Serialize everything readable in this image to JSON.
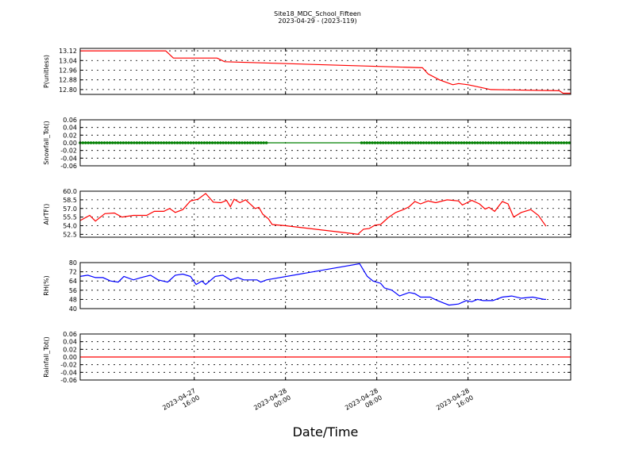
{
  "chart_data": {
    "type": "line",
    "title": "Site18_MDC_School_Fifteen",
    "subtitle": "2023-04-29 - (2023-119)",
    "xlabel": "Date/Time",
    "xlim": [
      "2023-04-27 06:00",
      "2023-04-29 01:00"
    ],
    "x_ticks": [
      {
        "value": "2023-04-27 16:00",
        "label_date": "2023-04-27",
        "label_time": "16:00"
      },
      {
        "value": "2023-04-28 00:00",
        "label_date": "2023-04-28",
        "label_time": "00:00"
      },
      {
        "value": "2023-04-28 08:00",
        "label_date": "2023-04-28",
        "label_time": "08:00"
      },
      {
        "value": "2023-04-28 16:00",
        "label_date": "2023-04-28",
        "label_time": "16:00"
      }
    ],
    "grid": true,
    "panels": [
      {
        "ylabel": "P(unitless)",
        "ylim": [
          12.76,
          13.14
        ],
        "yticks": [
          "13.12",
          "13.04",
          "12.96",
          "12.88",
          "12.80"
        ],
        "series": [
          {
            "color": "#ff0000",
            "markers": false,
            "points": [
              [
                "2023-04-27 06:00",
                13.12
              ],
              [
                "2023-04-27 13:30",
                13.12
              ],
              [
                "2023-04-27 14:10",
                13.06
              ],
              [
                "2023-04-27 18:00",
                13.06
              ],
              [
                "2023-04-27 18:40",
                13.03
              ],
              [
                "2023-04-28 12:00",
                12.98
              ],
              [
                "2023-04-28 12:30",
                12.93
              ],
              [
                "2023-04-28 13:30",
                12.88
              ],
              [
                "2023-04-28 14:40",
                12.84
              ],
              [
                "2023-04-28 15:10",
                12.85
              ],
              [
                "2023-04-28 16:00",
                12.84
              ],
              [
                "2023-04-28 18:00",
                12.8
              ],
              [
                "2023-04-29 00:00",
                12.79
              ],
              [
                "2023-04-29 00:20",
                12.77
              ],
              [
                "2023-04-29 01:00",
                12.77
              ]
            ]
          }
        ]
      },
      {
        "ylabel": "Snowfall_Tot()",
        "ylim": [
          -0.06,
          0.06
        ],
        "yticks": [
          "0.06",
          "0.04",
          "0.02",
          "0.00",
          "-0.02",
          "-0.04",
          "-0.06"
        ],
        "series": [
          {
            "color": "#007f00",
            "markers": true,
            "marker_ranges": [
              [
                "2023-04-27 06:00",
                "2023-04-27 22:30"
              ],
              [
                "2023-04-28 06:40",
                "2023-04-29 01:00"
              ]
            ],
            "points": [
              [
                "2023-04-27 06:00",
                0.0
              ],
              [
                "2023-04-29 01:00",
                0.0
              ]
            ]
          }
        ]
      },
      {
        "ylabel": "AirTF()",
        "ylim": [
          52.0,
          60.0
        ],
        "yticks": [
          "60.0",
          "58.5",
          "57.0",
          "55.5",
          "54.0",
          "52.5"
        ],
        "series": [
          {
            "color": "#ff0000",
            "markers": false,
            "points": [
              [
                "2023-04-27 06:00",
                54.9
              ],
              [
                "2023-04-27 06:50",
                55.8
              ],
              [
                "2023-04-27 07:20",
                54.8
              ],
              [
                "2023-04-27 08:10",
                56.1
              ],
              [
                "2023-04-27 09:00",
                56.2
              ],
              [
                "2023-04-27 09:40",
                55.5
              ],
              [
                "2023-04-27 10:40",
                55.8
              ],
              [
                "2023-04-27 11:50",
                55.8
              ],
              [
                "2023-04-27 12:30",
                56.5
              ],
              [
                "2023-04-27 13:20",
                56.5
              ],
              [
                "2023-04-27 13:50",
                57.0
              ],
              [
                "2023-04-27 14:20",
                56.3
              ],
              [
                "2023-04-27 15:00",
                56.8
              ],
              [
                "2023-04-27 15:40",
                58.3
              ],
              [
                "2023-04-27 16:20",
                58.6
              ],
              [
                "2023-04-27 17:00",
                59.6
              ],
              [
                "2023-04-27 17:40",
                58.1
              ],
              [
                "2023-04-27 18:20",
                58.0
              ],
              [
                "2023-04-27 18:50",
                58.4
              ],
              [
                "2023-04-27 19:10",
                57.3
              ],
              [
                "2023-04-27 19:30",
                58.6
              ],
              [
                "2023-04-27 20:00",
                58.0
              ],
              [
                "2023-04-27 20:30",
                58.5
              ],
              [
                "2023-04-27 21:20",
                57.0
              ],
              [
                "2023-04-27 21:40",
                57.2
              ],
              [
                "2023-04-27 22:00",
                56.0
              ],
              [
                "2023-04-27 22:30",
                55.2
              ],
              [
                "2023-04-27 22:50",
                54.2
              ],
              [
                "2023-04-28 00:00",
                54.0
              ],
              [
                "2023-04-28 06:00",
                52.6
              ],
              [
                "2023-04-28 06:20",
                52.5
              ],
              [
                "2023-04-28 06:50",
                53.4
              ],
              [
                "2023-04-28 07:20",
                53.5
              ],
              [
                "2023-04-28 07:50",
                54.1
              ],
              [
                "2023-04-28 08:20",
                54.2
              ],
              [
                "2023-04-28 09:00",
                55.4
              ],
              [
                "2023-04-28 09:40",
                56.3
              ],
              [
                "2023-04-28 10:20",
                56.8
              ],
              [
                "2023-04-28 10:50",
                57.3
              ],
              [
                "2023-04-28 11:20",
                58.2
              ],
              [
                "2023-04-28 11:50",
                57.8
              ],
              [
                "2023-04-28 12:30",
                58.3
              ],
              [
                "2023-04-28 13:10",
                58.0
              ],
              [
                "2023-04-28 14:10",
                58.5
              ],
              [
                "2023-04-28 15:10",
                58.3
              ],
              [
                "2023-04-28 15:30",
                57.6
              ],
              [
                "2023-04-28 16:20",
                58.4
              ],
              [
                "2023-04-28 17:00",
                57.8
              ],
              [
                "2023-04-28 17:30",
                56.9
              ],
              [
                "2023-04-28 17:50",
                57.2
              ],
              [
                "2023-04-28 18:20",
                56.5
              ],
              [
                "2023-04-28 19:00",
                58.2
              ],
              [
                "2023-04-28 19:30",
                57.8
              ],
              [
                "2023-04-28 20:00",
                55.5
              ],
              [
                "2023-04-28 20:40",
                56.3
              ],
              [
                "2023-04-28 21:30",
                56.8
              ],
              [
                "2023-04-28 22:10",
                55.8
              ],
              [
                "2023-04-28 22:50",
                53.9
              ]
            ]
          }
        ]
      },
      {
        "ylabel": "RH(%)",
        "ylim": [
          40,
          80
        ],
        "yticks": [
          "80",
          "72",
          "64",
          "56",
          "48",
          "40"
        ],
        "series": [
          {
            "color": "#0000ff",
            "markers": false,
            "points": [
              [
                "2023-04-27 06:00",
                68
              ],
              [
                "2023-04-27 06:40",
                69
              ],
              [
                "2023-04-27 07:20",
                67
              ],
              [
                "2023-04-27 08:00",
                67
              ],
              [
                "2023-04-27 08:40",
                64
              ],
              [
                "2023-04-27 09:20",
                63
              ],
              [
                "2023-04-27 09:50",
                68
              ],
              [
                "2023-04-27 10:40",
                65
              ],
              [
                "2023-04-27 11:20",
                67
              ],
              [
                "2023-04-27 12:10",
                69
              ],
              [
                "2023-04-27 12:50",
                65
              ],
              [
                "2023-04-27 13:40",
                63
              ],
              [
                "2023-04-27 14:20",
                69
              ],
              [
                "2023-04-27 15:00",
                70
              ],
              [
                "2023-04-27 15:40",
                68
              ],
              [
                "2023-04-27 16:10",
                61
              ],
              [
                "2023-04-27 16:40",
                64
              ],
              [
                "2023-04-27 17:00",
                61
              ],
              [
                "2023-04-27 17:50",
                68
              ],
              [
                "2023-04-27 18:30",
                69
              ],
              [
                "2023-04-27 19:10",
                65
              ],
              [
                "2023-04-27 19:50",
                67
              ],
              [
                "2023-04-27 20:20",
                65
              ],
              [
                "2023-04-27 21:30",
                65
              ],
              [
                "2023-04-27 21:50",
                63
              ],
              [
                "2023-04-27 22:20",
                65
              ],
              [
                "2023-04-28 06:30",
                79
              ],
              [
                "2023-04-28 07:10",
                68
              ],
              [
                "2023-04-28 07:40",
                64
              ],
              [
                "2023-04-28 08:20",
                62
              ],
              [
                "2023-04-28 08:40",
                58
              ],
              [
                "2023-04-28 09:20",
                56
              ],
              [
                "2023-04-28 10:00",
                51
              ],
              [
                "2023-04-28 10:50",
                54
              ],
              [
                "2023-04-28 11:20",
                53
              ],
              [
                "2023-04-28 11:50",
                50
              ],
              [
                "2023-04-28 12:40",
                50
              ],
              [
                "2023-04-28 13:20",
                47
              ],
              [
                "2023-04-28 13:50",
                45
              ],
              [
                "2023-04-28 14:20",
                43
              ],
              [
                "2023-04-28 15:10",
                44
              ],
              [
                "2023-04-28 15:50",
                47
              ],
              [
                "2023-04-28 16:20",
                46
              ],
              [
                "2023-04-28 16:50",
                48
              ],
              [
                "2023-04-28 17:20",
                47
              ],
              [
                "2023-04-28 18:10",
                47
              ],
              [
                "2023-04-28 19:00",
                50
              ],
              [
                "2023-04-28 19:50",
                51
              ],
              [
                "2023-04-28 20:40",
                49
              ],
              [
                "2023-04-28 21:40",
                50
              ],
              [
                "2023-04-28 22:40",
                48
              ],
              [
                "2023-04-28 22:50",
                48
              ]
            ]
          }
        ]
      },
      {
        "ylabel": "Rainfall_Tot()",
        "ylim": [
          -0.06,
          0.06
        ],
        "yticks": [
          "0.06",
          "0.04",
          "0.02",
          "0.00",
          "-0.02",
          "-0.04",
          "-0.06"
        ],
        "series": [
          {
            "color": "#ff0000",
            "markers": false,
            "points": [
              [
                "2023-04-27 06:00",
                0.0
              ],
              [
                "2023-04-29 01:00",
                0.0
              ]
            ]
          }
        ]
      }
    ]
  }
}
